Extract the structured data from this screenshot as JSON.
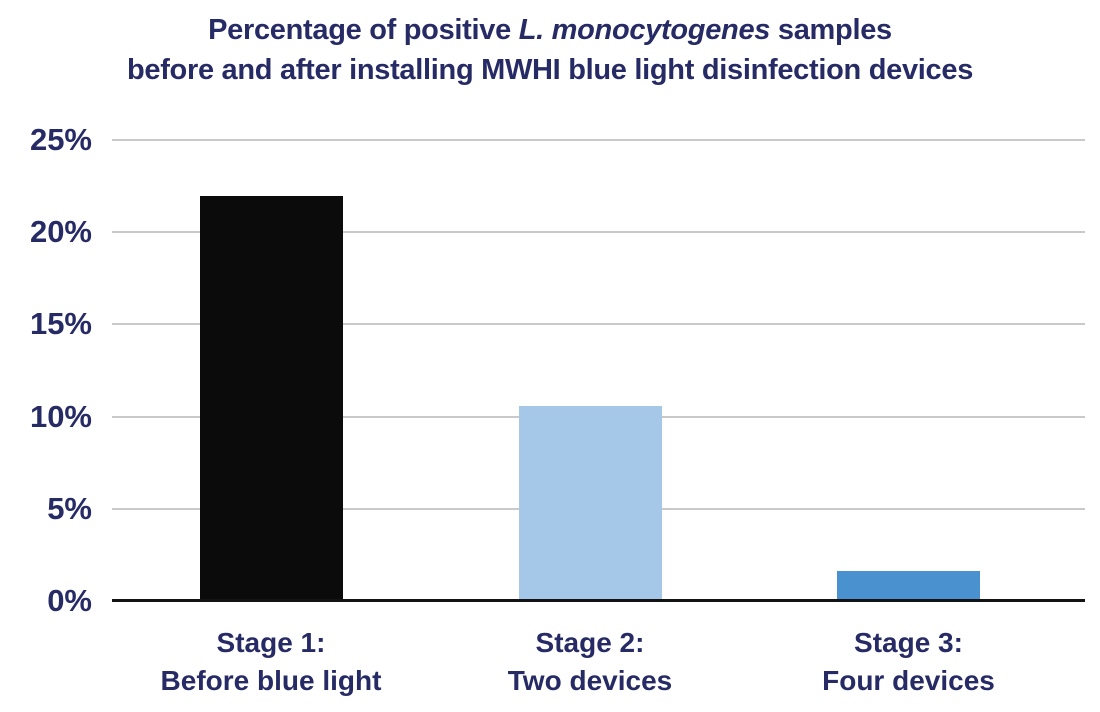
{
  "title": {
    "line1_prefix": "Percentage of positive ",
    "line1_italic": "L. monocytogenes",
    "line1_suffix": " samples",
    "line2": "before and after installing MWHI blue light disinfection devices"
  },
  "colors": {
    "title_text": "#272b65",
    "axis_label_text": "#272b65",
    "gridline": "#c9c9c9",
    "axis_line": "#131313",
    "background": "#ffffff",
    "bar_stage1": "#0b0b0b",
    "bar_stage2": "#a5c8e9",
    "bar_stage3": "#4a91cf"
  },
  "chart_data": {
    "type": "bar",
    "title": "Percentage of positive L. monocytogenes samples before and after installing MWHI blue light disinfection devices",
    "categories": [
      "Stage 1: Before blue light",
      "Stage 2: Two devices",
      "Stage 3: Four devices"
    ],
    "category_lines": [
      [
        "Stage 1:",
        "Before blue light"
      ],
      [
        "Stage 2:",
        "Two devices"
      ],
      [
        "Stage 3:",
        "Four devices"
      ]
    ],
    "values": [
      21.9,
      10.5,
      1.6
    ],
    "unit": "%",
    "bar_colors": [
      "#0b0b0b",
      "#a5c8e9",
      "#4a91cf"
    ],
    "xlabel": "",
    "ylabel": "",
    "ylim": [
      0,
      25
    ],
    "ytick_step": 5,
    "ytick_labels": [
      "0%",
      "5%",
      "10%",
      "15%",
      "20%",
      "25%"
    ],
    "grid": true,
    "legend": false
  }
}
